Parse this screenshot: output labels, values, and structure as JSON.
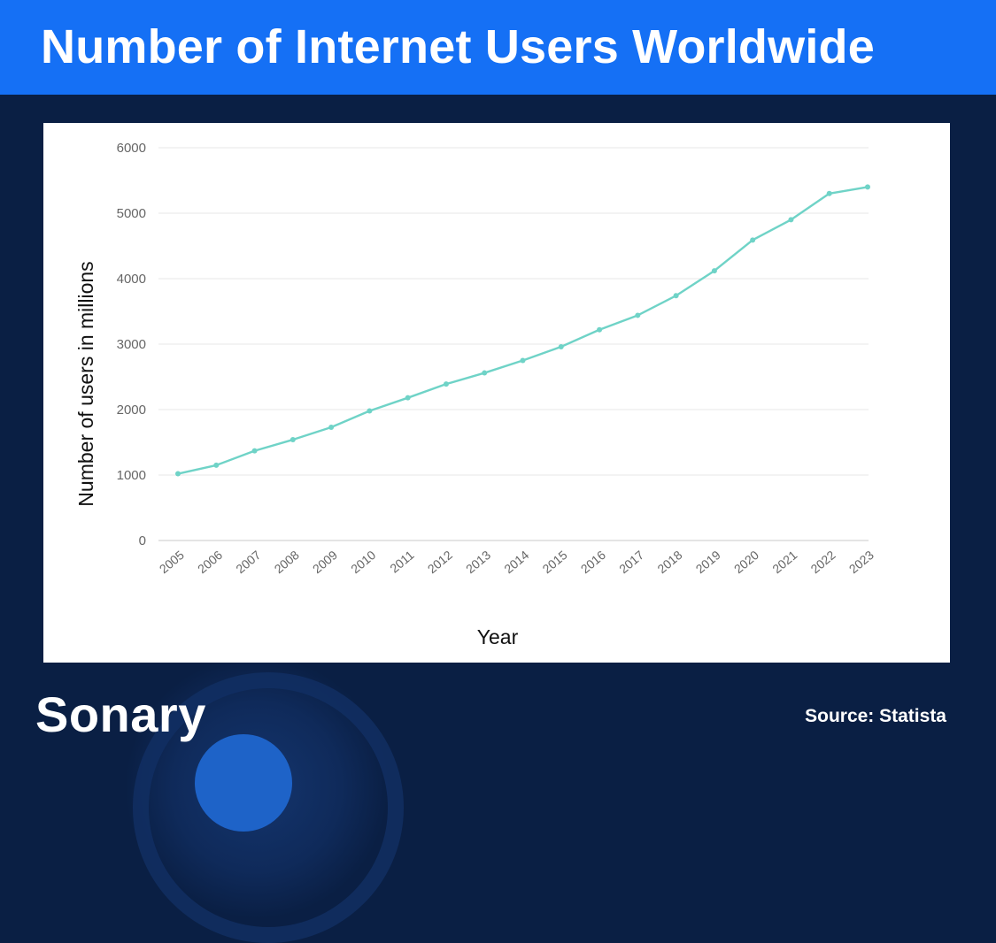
{
  "header": {
    "title": "Number of Internet Users Worldwide"
  },
  "brand": {
    "logo_text": "Sonary"
  },
  "footer": {
    "source": "Source: Statista"
  },
  "colors": {
    "header_bg": "#1570f5",
    "page_bg": "#0a1f44",
    "line": "#6fd3c7"
  },
  "chart_data": {
    "type": "line",
    "title": "Number of Internet Users Worldwide",
    "xlabel": "Year",
    "ylabel": "Number of users in millions",
    "categories": [
      "2005",
      "2006",
      "2007",
      "2008",
      "2009",
      "2010",
      "2011",
      "2012",
      "2013",
      "2014",
      "2015",
      "2016",
      "2017",
      "2018",
      "2019",
      "2020",
      "2021",
      "2022",
      "2023"
    ],
    "series": [
      {
        "values": [
          1020,
          1150,
          1370,
          1540,
          1730,
          1980,
          2180,
          2390,
          2560,
          2750,
          2960,
          3220,
          3440,
          3740,
          4120,
          4590,
          4900,
          5300,
          5400
        ]
      }
    ],
    "yticks": [
      0,
      1000,
      2000,
      3000,
      4000,
      5000,
      6000
    ],
    "ylim": [
      0,
      6000
    ],
    "grid": true,
    "legend": "none"
  }
}
